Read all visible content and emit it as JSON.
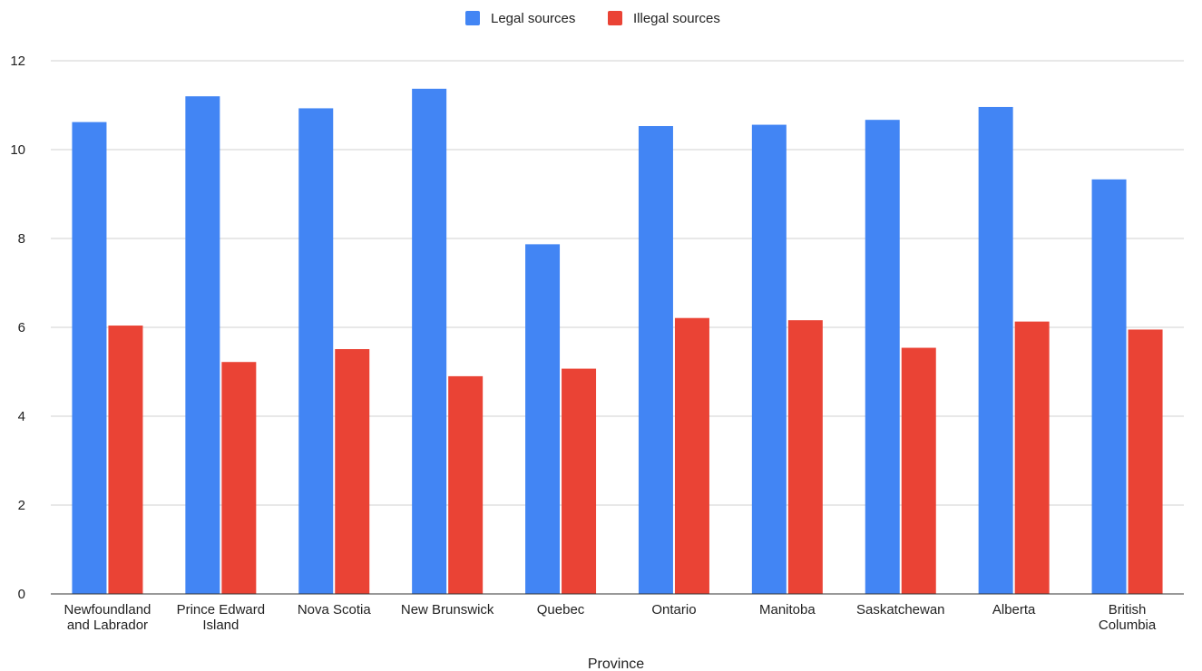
{
  "chart_data": {
    "type": "bar",
    "title": "",
    "xlabel": "Province",
    "ylabel": "",
    "ylim": [
      0,
      12
    ],
    "yticks": [
      0,
      2,
      4,
      6,
      8,
      10,
      12
    ],
    "grid": true,
    "legend_position": "top-center",
    "categories": [
      [
        "Newfoundland",
        "and Labrador"
      ],
      [
        "Prince Edward",
        "Island"
      ],
      [
        "Nova Scotia"
      ],
      [
        "New Brunswick"
      ],
      [
        "Quebec"
      ],
      [
        "Ontario"
      ],
      [
        "Manitoba"
      ],
      [
        "Saskatchewan"
      ],
      [
        "Alberta"
      ],
      [
        "British",
        "Columbia"
      ]
    ],
    "series": [
      {
        "name": "Legal sources",
        "color": "#4285f4",
        "values": [
          10.62,
          11.2,
          10.93,
          11.37,
          7.87,
          10.53,
          10.56,
          10.67,
          10.96,
          9.33
        ]
      },
      {
        "name": "Illegal sources",
        "color": "#ea4335",
        "values": [
          6.04,
          5.22,
          5.51,
          4.9,
          5.07,
          6.21,
          6.16,
          5.54,
          6.13,
          5.95
        ]
      }
    ]
  }
}
